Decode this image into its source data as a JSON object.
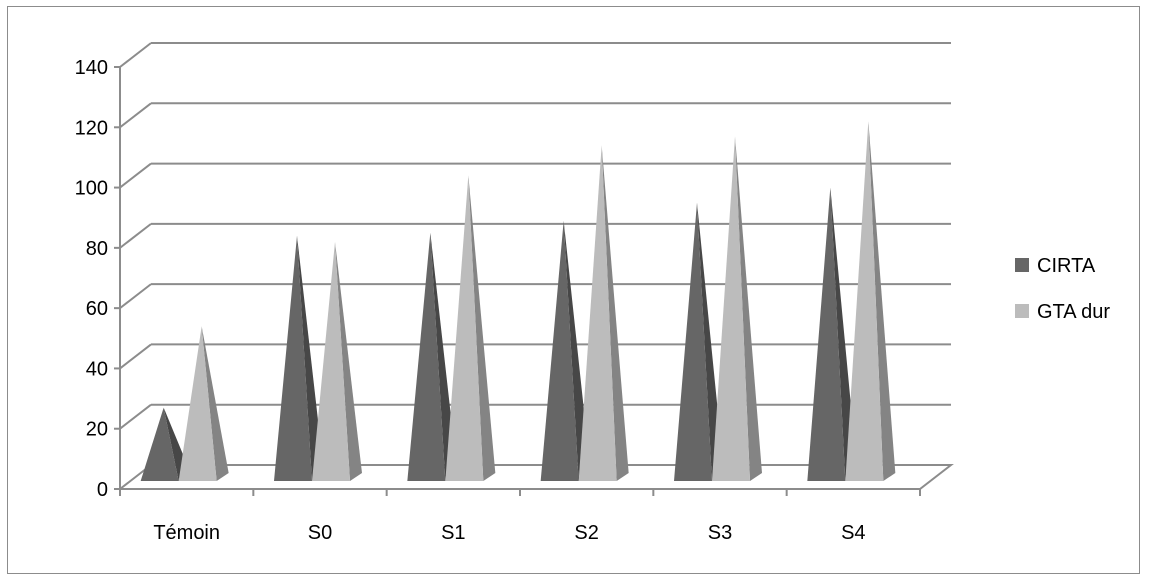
{
  "chart_data": {
    "type": "bar",
    "style": "3d-pyramid",
    "categories": [
      "Témoin",
      "S0",
      "S1",
      "S2",
      "S3",
      "S4"
    ],
    "series": [
      {
        "name": "CIRTA",
        "values": [
          27,
          84,
          85,
          89,
          95,
          100
        ],
        "color": "#666666"
      },
      {
        "name": "GTA dur",
        "values": [
          54,
          82,
          104,
          114,
          117,
          122
        ],
        "color": "#bcbcbc"
      }
    ],
    "ylim": [
      0,
      140
    ],
    "yticks": [
      "0",
      "20",
      "40",
      "60",
      "80",
      "100",
      "120",
      "140"
    ],
    "grid": true,
    "legend_position": "right"
  }
}
